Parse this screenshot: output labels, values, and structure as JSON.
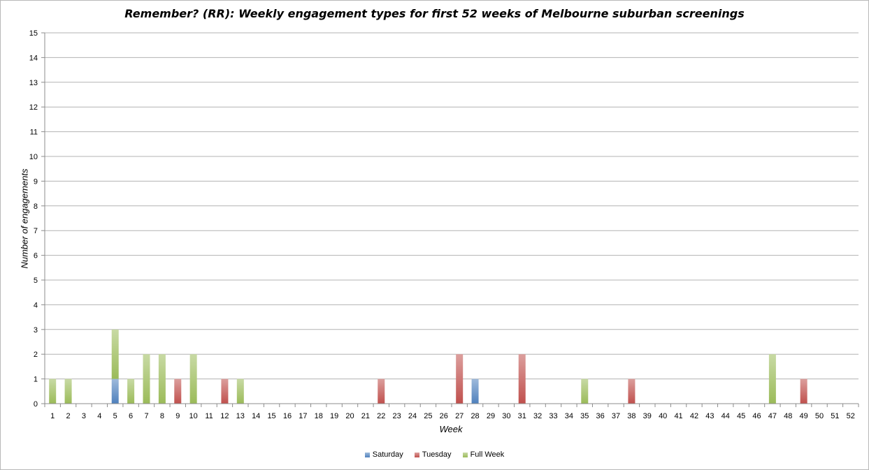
{
  "chart_data": {
    "type": "bar",
    "stacked": true,
    "title": "Remember? (RR): Weekly engagement types for first 52 weeks of Melbourne suburban screenings",
    "xlabel": "Week",
    "ylabel": "Number of engagements",
    "ylim": [
      0,
      15
    ],
    "yticks": [
      0,
      1,
      2,
      3,
      4,
      5,
      6,
      7,
      8,
      9,
      10,
      11,
      12,
      13,
      14,
      15
    ],
    "grid": true,
    "legend_position": "bottom",
    "categories": [
      "1",
      "2",
      "3",
      "4",
      "5",
      "6",
      "7",
      "8",
      "9",
      "10",
      "11",
      "12",
      "13",
      "14",
      "15",
      "16",
      "17",
      "18",
      "19",
      "20",
      "21",
      "22",
      "23",
      "24",
      "25",
      "26",
      "27",
      "28",
      "29",
      "30",
      "31",
      "32",
      "33",
      "34",
      "35",
      "36",
      "37",
      "38",
      "39",
      "40",
      "41",
      "42",
      "43",
      "44",
      "45",
      "46",
      "47",
      "48",
      "49",
      "50",
      "51",
      "52"
    ],
    "series": [
      {
        "name": "Saturday",
        "color": "#4f81bd",
        "values": [
          0,
          0,
          0,
          0,
          1,
          0,
          0,
          0,
          0,
          0,
          0,
          0,
          0,
          0,
          0,
          0,
          0,
          0,
          0,
          0,
          0,
          0,
          0,
          0,
          0,
          0,
          0,
          1,
          0,
          0,
          0,
          0,
          0,
          0,
          0,
          0,
          0,
          0,
          0,
          0,
          0,
          0,
          0,
          0,
          0,
          0,
          0,
          0,
          0,
          0,
          0,
          0
        ]
      },
      {
        "name": "Tuesday",
        "color": "#c0504d",
        "values": [
          0,
          0,
          0,
          0,
          0,
          0,
          0,
          0,
          1,
          0,
          0,
          1,
          0,
          0,
          0,
          0,
          0,
          0,
          0,
          0,
          0,
          1,
          0,
          0,
          0,
          0,
          2,
          0,
          0,
          0,
          2,
          0,
          0,
          0,
          0,
          0,
          0,
          1,
          0,
          0,
          0,
          0,
          0,
          0,
          0,
          0,
          0,
          0,
          1,
          0,
          0,
          0
        ]
      },
      {
        "name": "Full Week",
        "color": "#9bbb59",
        "values": [
          1,
          1,
          0,
          0,
          2,
          1,
          2,
          2,
          0,
          2,
          0,
          0,
          1,
          0,
          0,
          0,
          0,
          0,
          0,
          0,
          0,
          0,
          0,
          0,
          0,
          0,
          0,
          0,
          0,
          0,
          0,
          0,
          0,
          0,
          1,
          0,
          0,
          0,
          0,
          0,
          0,
          0,
          0,
          0,
          0,
          0,
          2,
          0,
          0,
          0,
          0,
          0
        ]
      }
    ]
  }
}
